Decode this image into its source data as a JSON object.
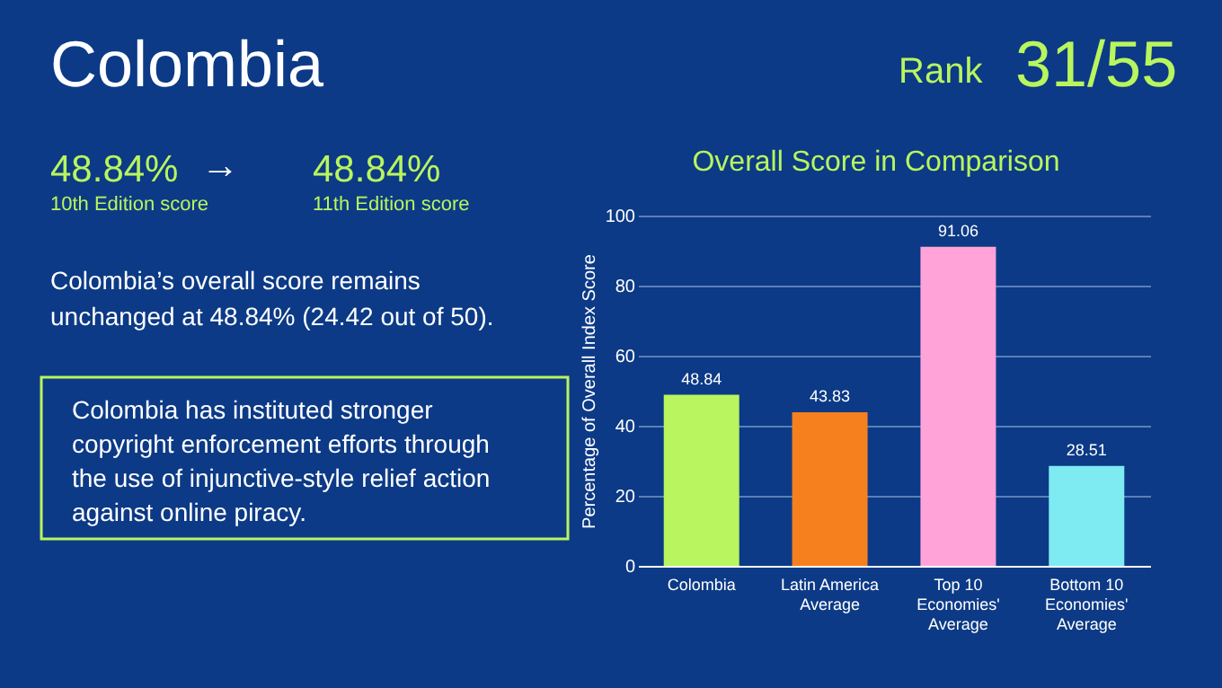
{
  "chart_data": {
    "type": "bar",
    "title": "Overall Score in Comparison",
    "categories": [
      "Colombia",
      "Latin America Average",
      "Top 10 Economies' Average",
      "Bottom 10 Economies' Average"
    ],
    "values": [
      48.84,
      43.83,
      91.06,
      28.51
    ],
    "colors": [
      "#b8f55e",
      "#f7801e",
      "#ffa3d8",
      "#7eeaf2"
    ],
    "ylabel": "Percentage of Overall Index Score",
    "ylim": [
      0,
      100
    ],
    "yticks": [
      0,
      20,
      40,
      60,
      80,
      100
    ],
    "grid": "y",
    "data_labels": true,
    "annotations": [
      "Colombia",
      "Rank",
      "31/55",
      "48.84%",
      "→",
      "48.84%",
      "10th Edition score",
      "11th Edition score",
      "Colombia’s overall score remains\nunchanged at 48.84% (24.42 out of 50).",
      "Colombia has instituted stronger\ncopyright enforcement efforts through\nthe use of injunctive-style relief action\nagainst online piracy."
    ]
  }
}
